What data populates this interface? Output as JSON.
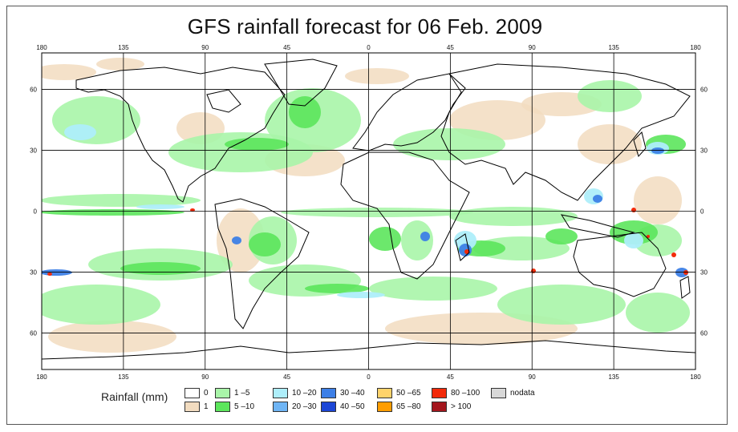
{
  "title": "GFS rainfall forecast for 06 Feb. 2009",
  "axes": {
    "top_ticks": [
      "180",
      "135",
      "90",
      "45",
      "0",
      "45",
      "90",
      "135",
      "180"
    ],
    "bottom_ticks": [
      "180",
      "135",
      "90",
      "45",
      "0",
      "45",
      "90",
      "135",
      "180"
    ],
    "left_ticks": [
      "60",
      "30",
      "0",
      "30",
      "60"
    ],
    "right_ticks": [
      "60",
      "30",
      "0",
      "30",
      "60"
    ],
    "grid": true
  },
  "legend": {
    "title": "Rainfall (mm)",
    "items": [
      {
        "label": "0",
        "color": "#ffffff"
      },
      {
        "label": "1",
        "color": "#f2dcc0"
      },
      {
        "label": "1 –5",
        "color": "#a9f5a9"
      },
      {
        "label": "5 –10",
        "color": "#5ce65c"
      },
      {
        "label": "10 –20",
        "color": "#aeeefa"
      },
      {
        "label": "20 –30",
        "color": "#6fb5f5"
      },
      {
        "label": "30 –40",
        "color": "#3d7fe6"
      },
      {
        "label": "40 –50",
        "color": "#1c46d6"
      },
      {
        "label": "50 –65",
        "color": "#ffd36b"
      },
      {
        "label": "65 –80",
        "color": "#ff9d00"
      },
      {
        "label": "80 –100",
        "color": "#f22a0a"
      },
      {
        "label": "> 100",
        "color": "#a3161d"
      },
      {
        "label": "nodata",
        "color": "#d8d8d8"
      }
    ]
  }
}
